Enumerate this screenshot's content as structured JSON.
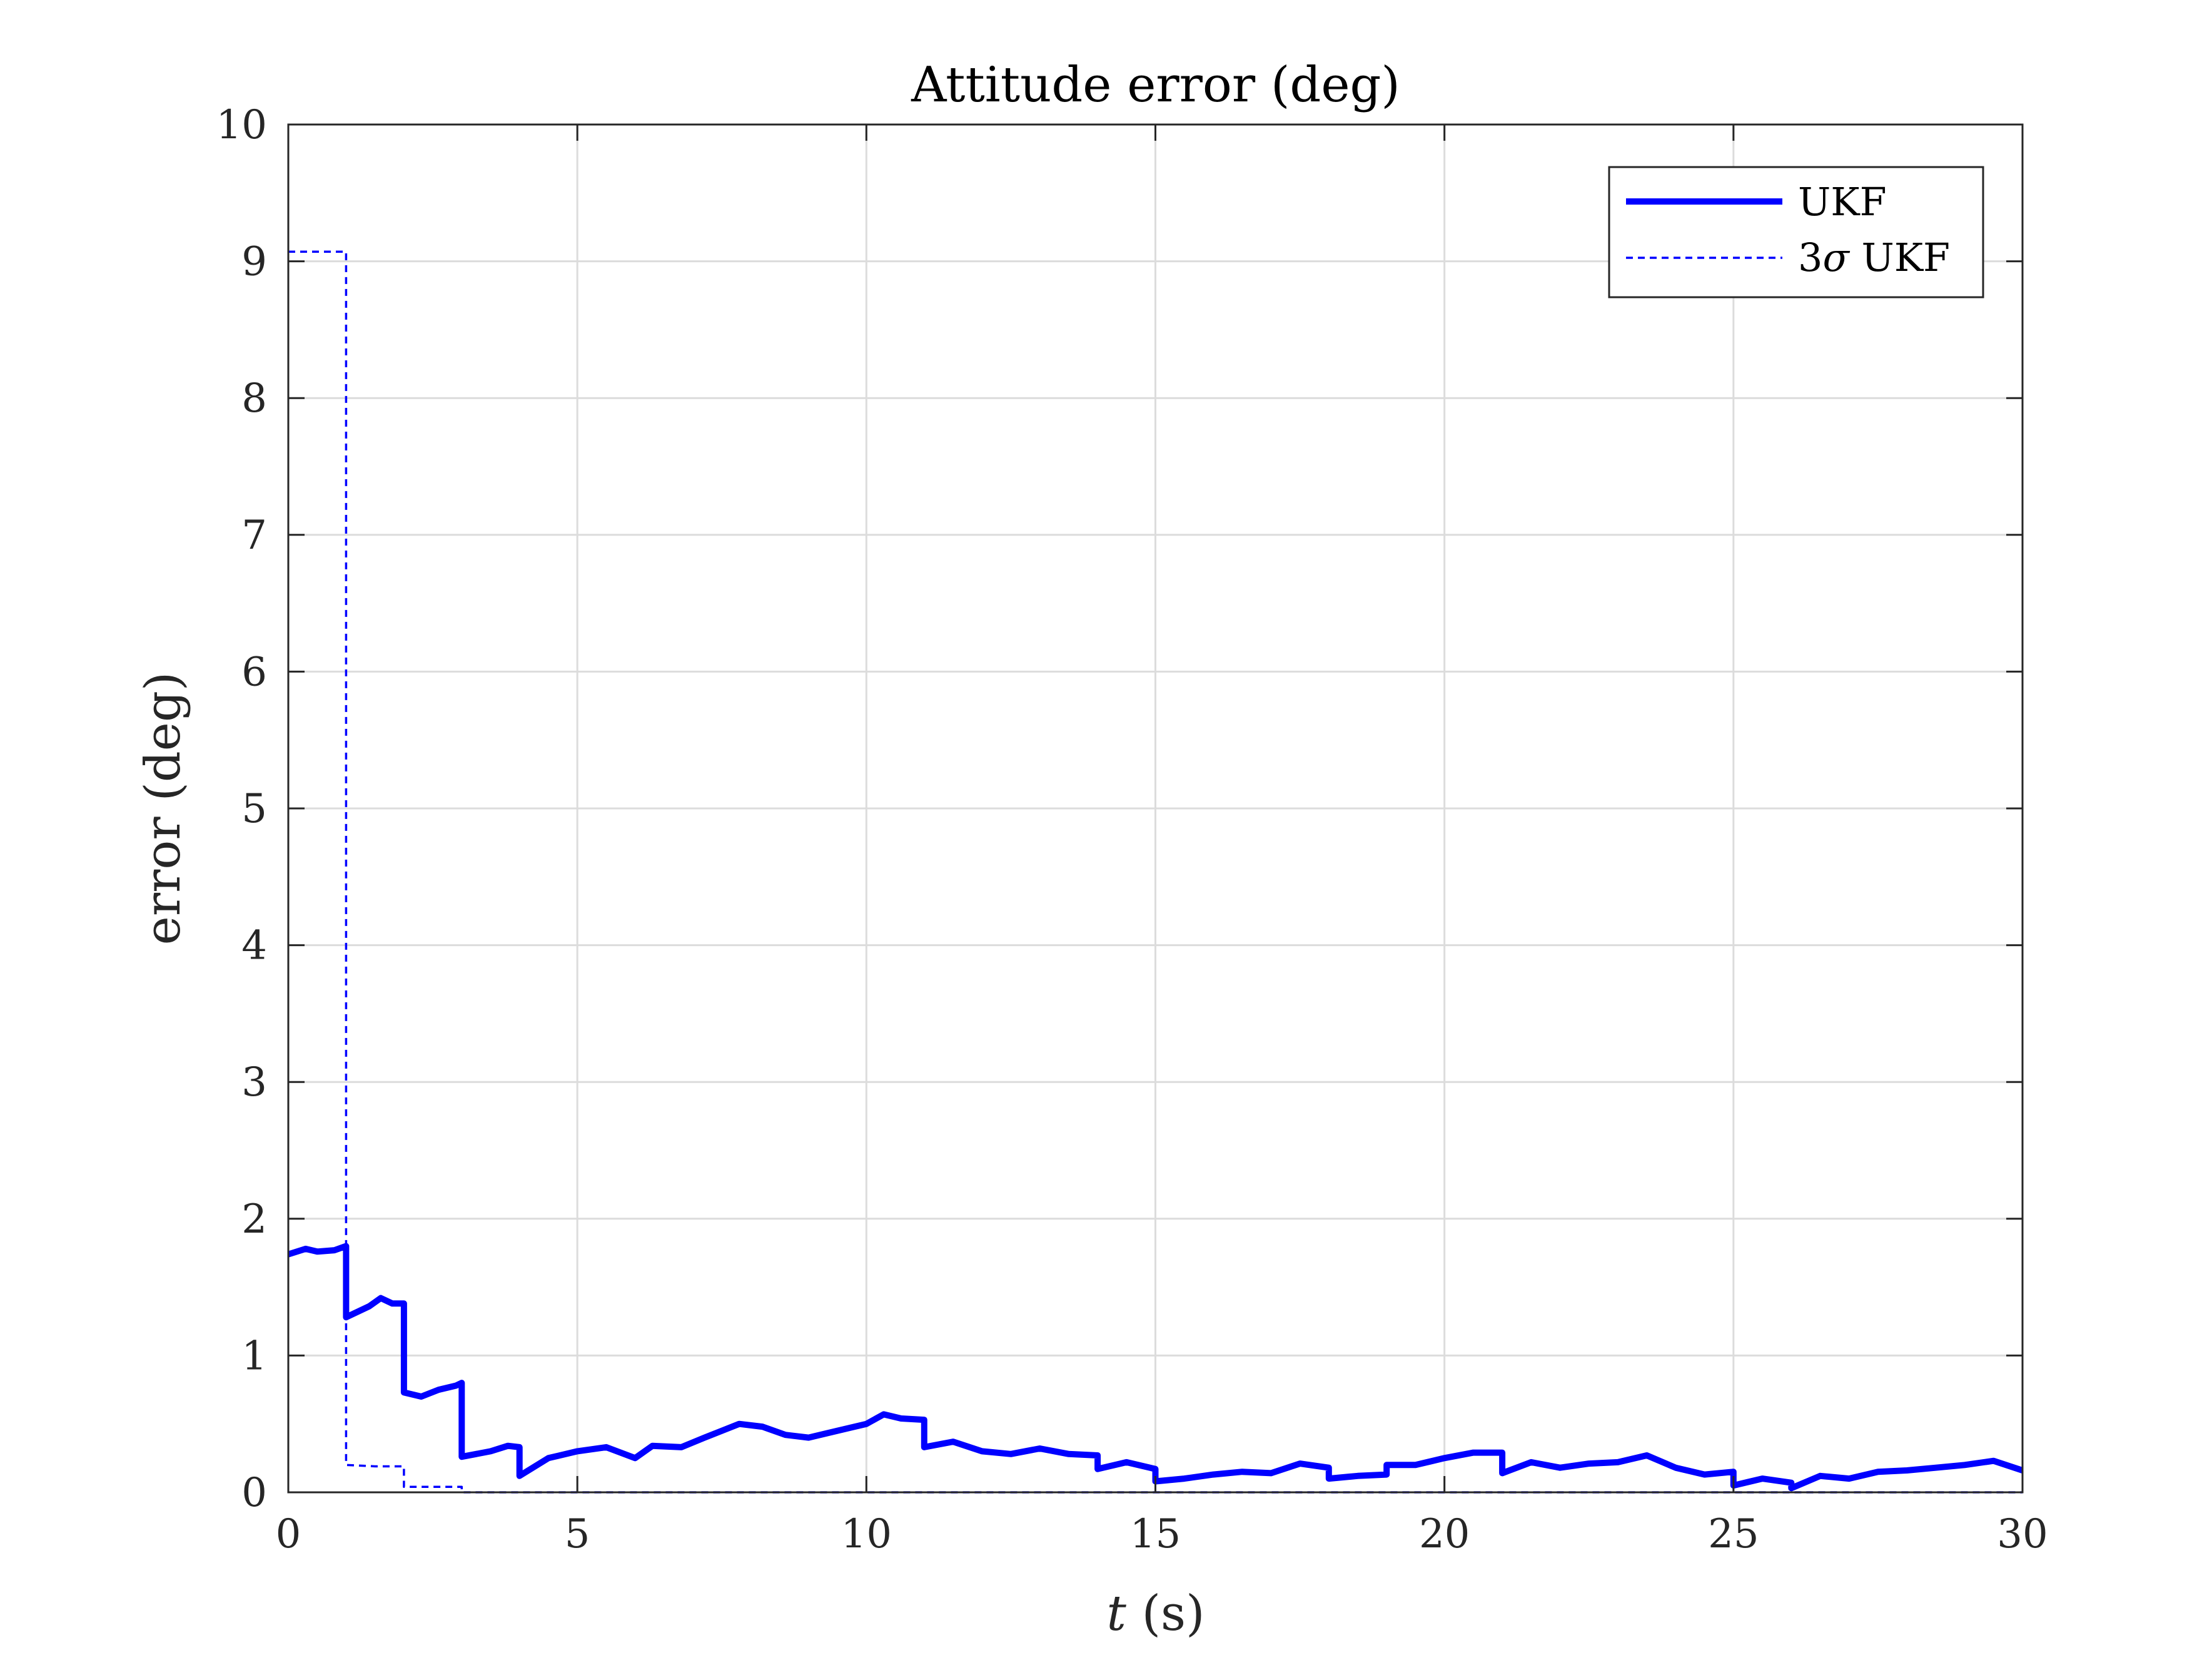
{
  "chart_data": {
    "type": "line",
    "title": "Attitude error (deg)",
    "xlabel_var": "t",
    "xlabel_unit": " (s)",
    "ylabel": "error (deg)",
    "xlim": [
      0,
      30
    ],
    "ylim": [
      0,
      10
    ],
    "xticks": [
      "0",
      "5",
      "10",
      "15",
      "20",
      "25",
      "30"
    ],
    "yticks": [
      "0",
      "1",
      "2",
      "3",
      "4",
      "5",
      "6",
      "7",
      "8",
      "9",
      "10"
    ],
    "grid": true,
    "legend_position": "top-right",
    "series": [
      {
        "name": "UKF",
        "style": "solid",
        "color": "#0000ff",
        "x": [
          0,
          0.3,
          0.5,
          0.8,
          1.0,
          1.0,
          1.4,
          1.6,
          1.8,
          2.0,
          2.0,
          2.3,
          2.6,
          2.9,
          3.0,
          3.0,
          3.5,
          3.8,
          4.0,
          4.0,
          4.5,
          5.0,
          5.5,
          6.0,
          6.3,
          6.8,
          7.2,
          7.8,
          8.2,
          8.6,
          9.0,
          9.5,
          10.0,
          10.3,
          10.6,
          11.0,
          11.0,
          11.5,
          12.0,
          12.5,
          13.0,
          13.5,
          14.0,
          14.0,
          14.5,
          15.0,
          15.0,
          15.5,
          16.0,
          16.5,
          17.0,
          17.5,
          18.0,
          18.0,
          18.5,
          19.0,
          19.0,
          19.5,
          20.0,
          20.5,
          21.0,
          21.0,
          21.5,
          22.0,
          22.5,
          23.0,
          23.5,
          24.0,
          24.5,
          25.0,
          25.0,
          25.5,
          26.0,
          26.0,
          26.5,
          27.0,
          27.5,
          28.0,
          28.5,
          29.0,
          29.5,
          30.0
        ],
        "y": [
          1.74,
          1.78,
          1.76,
          1.77,
          1.8,
          1.28,
          1.36,
          1.42,
          1.38,
          1.38,
          0.73,
          0.7,
          0.75,
          0.78,
          0.8,
          0.26,
          0.3,
          0.34,
          0.33,
          0.12,
          0.25,
          0.3,
          0.33,
          0.25,
          0.34,
          0.33,
          0.4,
          0.5,
          0.48,
          0.42,
          0.4,
          0.45,
          0.5,
          0.57,
          0.54,
          0.53,
          0.33,
          0.37,
          0.3,
          0.28,
          0.32,
          0.28,
          0.27,
          0.17,
          0.22,
          0.17,
          0.08,
          0.1,
          0.13,
          0.15,
          0.14,
          0.21,
          0.18,
          0.1,
          0.12,
          0.13,
          0.2,
          0.2,
          0.25,
          0.29,
          0.29,
          0.14,
          0.22,
          0.18,
          0.21,
          0.22,
          0.27,
          0.18,
          0.13,
          0.15,
          0.05,
          0.1,
          0.07,
          0.03,
          0.12,
          0.1,
          0.15,
          0.16,
          0.18,
          0.2,
          0.23,
          0.16
        ]
      },
      {
        "name": "3σ UKF",
        "legend_prefix": "3",
        "legend_symbol": "σ",
        "legend_suffix": " UKF",
        "style": "dashed",
        "color": "#0000ff",
        "x": [
          0,
          1.0,
          1.0,
          1.5,
          2.0,
          2.0,
          3.0,
          3.0,
          30.0
        ],
        "y": [
          9.07,
          9.07,
          0.2,
          0.19,
          0.19,
          0.04,
          0.04,
          0.0,
          0.0
        ]
      }
    ]
  }
}
